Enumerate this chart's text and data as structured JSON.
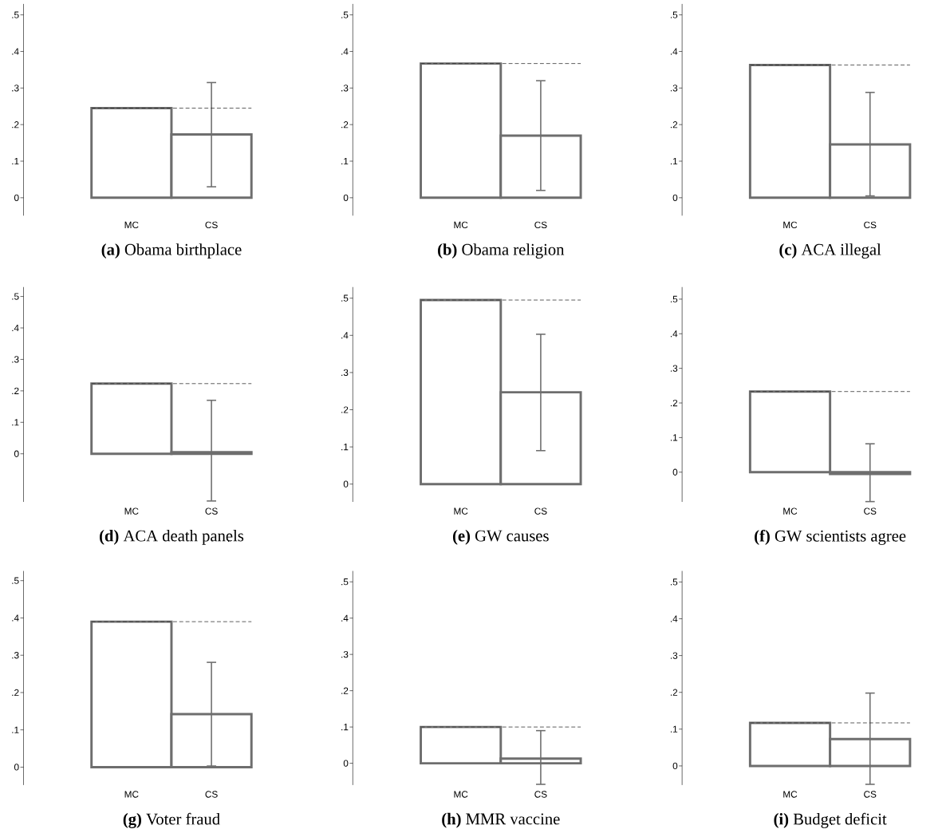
{
  "chart_data": [
    {
      "type": "bar",
      "title": "**(a)** Obama birthplace",
      "categories": [
        "MC",
        "CS"
      ],
      "values": [
        0.245,
        0.173
      ],
      "color": "#6e6e6e",
      "errors": [
        null,
        [
          0.03,
          0.315
        ]
      ],
      "ylim": [
        -0.049,
        0.53
      ],
      "yticks": [
        0,
        {
          "value": 0.1,
          "label": ".1"
        },
        {
          "value": 0.2,
          "label": ".2"
        },
        {
          "value": 0.3,
          "label": ".3"
        },
        {
          "value": 0.4,
          "label": ".4"
        },
        {
          "value": 0.5,
          "label": ".5"
        }
      ],
      "ref_lines": [
        {
          "axis": "y",
          "value": 0.245,
          "line_style": "dashed"
        }
      ]
    },
    {
      "type": "bar",
      "title": "**(b)** Obama religion",
      "categories": [
        "MC",
        "CS"
      ],
      "values": [
        0.367,
        0.17
      ],
      "color": "#6e6e6e",
      "errors": [
        null,
        [
          0.02,
          0.32
        ]
      ],
      "ylim": [
        -0.049,
        0.53
      ],
      "yticks": [
        0,
        {
          "value": 0.1,
          "label": ".1"
        },
        {
          "value": 0.2,
          "label": ".2"
        },
        {
          "value": 0.3,
          "label": ".3"
        },
        {
          "value": 0.4,
          "label": ".4"
        },
        {
          "value": 0.5,
          "label": ".5"
        }
      ],
      "ref_lines": [
        {
          "axis": "y",
          "value": 0.367,
          "line_style": "dashed"
        }
      ]
    },
    {
      "type": "bar",
      "title": "**(c)** ACA illegal",
      "categories": [
        "MC",
        "CS"
      ],
      "values": [
        0.363,
        0.146
      ],
      "color": "#6e6e6e",
      "errors": [
        null,
        [
          0.005,
          0.288
        ]
      ],
      "ylim": [
        -0.049,
        0.53
      ],
      "yticks": [
        0,
        {
          "value": 0.1,
          "label": ".1"
        },
        {
          "value": 0.2,
          "label": ".2"
        },
        {
          "value": 0.3,
          "label": ".3"
        },
        {
          "value": 0.4,
          "label": ".4"
        },
        {
          "value": 0.5,
          "label": ".5"
        }
      ],
      "ref_lines": [
        {
          "axis": "y",
          "value": 0.363,
          "line_style": "dashed"
        }
      ]
    },
    {
      "type": "bar",
      "title": "**(d)** ACA death panels",
      "categories": [
        "MC",
        "CS"
      ],
      "values": [
        0.223,
        0.005
      ],
      "color": "#6e6e6e",
      "errors": [
        null,
        [
          -0.15,
          0.17
        ]
      ],
      "ylim": [
        -0.153,
        0.53
      ],
      "yticks": [
        0,
        {
          "value": 0.1,
          "label": ".1"
        },
        {
          "value": 0.2,
          "label": ".2"
        },
        {
          "value": 0.3,
          "label": ".3"
        },
        {
          "value": 0.4,
          "label": ".4"
        },
        {
          "value": 0.5,
          "label": ".5"
        }
      ],
      "ref_lines": [
        {
          "axis": "y",
          "value": 0.223,
          "line_style": "dashed"
        }
      ]
    },
    {
      "type": "bar",
      "title": "**(e)** GW causes",
      "categories": [
        "MC",
        "CS"
      ],
      "values": [
        0.495,
        0.247
      ],
      "color": "#6e6e6e",
      "errors": [
        null,
        [
          0.09,
          0.403
        ]
      ],
      "ylim": [
        -0.048,
        0.53
      ],
      "yticks": [
        0,
        {
          "value": 0.1,
          "label": ".1"
        },
        {
          "value": 0.2,
          "label": ".2"
        },
        {
          "value": 0.3,
          "label": ".3"
        },
        {
          "value": 0.4,
          "label": ".4"
        },
        {
          "value": 0.5,
          "label": ".5"
        }
      ],
      "ref_lines": [
        {
          "axis": "y",
          "value": 0.495,
          "line_style": "dashed"
        }
      ]
    },
    {
      "type": "bar",
      "title": "**(f)** GW scientists agree",
      "categories": [
        "MC",
        "CS"
      ],
      "values": [
        0.233,
        -0.005
      ],
      "color": "#6e6e6e",
      "errors": [
        null,
        [
          -0.085,
          0.082
        ]
      ],
      "ylim": [
        -0.086,
        0.535
      ],
      "yticks": [
        0,
        {
          "value": 0.1,
          "label": ".1"
        },
        {
          "value": 0.2,
          "label": ".2"
        },
        {
          "value": 0.3,
          "label": ".3"
        },
        {
          "value": 0.4,
          "label": ".4"
        },
        {
          "value": 0.5,
          "label": ".5"
        }
      ],
      "ref_lines": [
        {
          "axis": "y",
          "value": 0.233,
          "line_style": "dashed"
        }
      ]
    },
    {
      "type": "bar",
      "title": "**(g)** Voter fraud",
      "categories": [
        "MC",
        "CS"
      ],
      "values": [
        0.39,
        0.142
      ],
      "color": "#6e6e6e",
      "errors": [
        null,
        [
          0.003,
          0.281
        ]
      ],
      "ylim": [
        -0.048,
        0.526
      ],
      "yticks": [
        0,
        {
          "value": 0.1,
          "label": ".1"
        },
        {
          "value": 0.2,
          "label": ".2"
        },
        {
          "value": 0.3,
          "label": ".3"
        },
        {
          "value": 0.4,
          "label": ".4"
        },
        {
          "value": 0.5,
          "label": ".5"
        }
      ],
      "ref_lines": [
        {
          "axis": "y",
          "value": 0.39,
          "line_style": "dashed"
        }
      ]
    },
    {
      "type": "bar",
      "title": "**(h)** MMR vaccine",
      "categories": [
        "MC",
        "CS"
      ],
      "values": [
        0.1,
        0.013
      ],
      "color": "#6e6e6e",
      "errors": [
        null,
        [
          -0.058,
          0.09
        ]
      ],
      "ylim": [
        -0.06,
        0.53
      ],
      "yticks": [
        0,
        {
          "value": 0.1,
          "label": ".1"
        },
        {
          "value": 0.2,
          "label": ".2"
        },
        {
          "value": 0.3,
          "label": ".3"
        },
        {
          "value": 0.4,
          "label": ".4"
        },
        {
          "value": 0.5,
          "label": ".5"
        }
      ],
      "ref_lines": [
        {
          "axis": "y",
          "value": 0.1,
          "line_style": "dashed"
        }
      ]
    },
    {
      "type": "bar",
      "title": "**(i)** Budget deficit",
      "categories": [
        "MC",
        "CS"
      ],
      "values": [
        0.117,
        0.073
      ],
      "color": "#6e6e6e",
      "errors": [
        null,
        [
          -0.05,
          0.198
        ]
      ],
      "ylim": [
        -0.052,
        0.53
      ],
      "yticks": [
        0,
        {
          "value": 0.1,
          "label": ".1"
        },
        {
          "value": 0.2,
          "label": ".2"
        },
        {
          "value": 0.3,
          "label": ".3"
        },
        {
          "value": 0.4,
          "label": ".4"
        },
        {
          "value": 0.5,
          "label": ".5"
        }
      ],
      "ref_lines": [
        {
          "axis": "y",
          "value": 0.117,
          "line_style": "dashed"
        }
      ]
    }
  ]
}
